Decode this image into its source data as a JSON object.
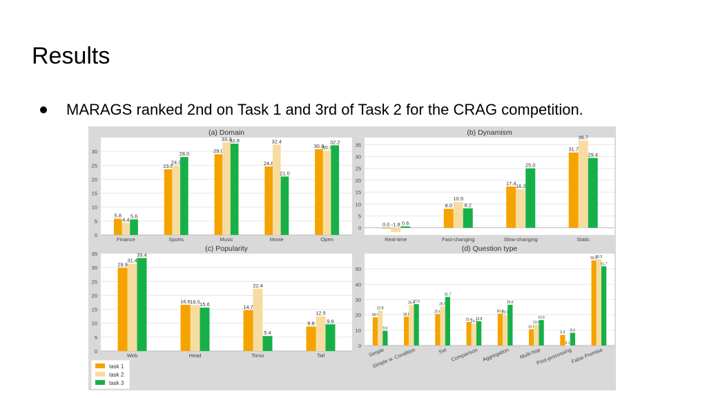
{
  "slide": {
    "title": "Results",
    "bullet": "MARAGS ranked 2nd on Task 1 and 3rd of Task 2 for the CRAG competition."
  },
  "colors": {
    "task 1": "#f5a300",
    "task 2": "#f7dca0",
    "task 3": "#17b048",
    "panel_bg": "#ffffff",
    "grid": "#e6e6e6"
  },
  "legend": {
    "placement": "bottom-left",
    "items": [
      "task 1",
      "task 2",
      "task 3"
    ]
  },
  "chart_data": [
    {
      "type": "bar",
      "title": "(a) Domain",
      "categories": [
        "Finance",
        "Sports",
        "Music",
        "Movie",
        "Open"
      ],
      "series": [
        {
          "name": "task 1",
          "values": [
            5.8,
            23.6,
            29.0,
            24.6,
            30.8
          ]
        },
        {
          "name": "task 2",
          "values": [
            4.4,
            24.9,
            33.3,
            32.4,
            30.3
          ]
        },
        {
          "name": "task 3",
          "values": [
            5.6,
            28.0,
            32.8,
            21.0,
            32.2
          ]
        }
      ],
      "ylim": [
        0,
        35
      ],
      "yticks": [
        0,
        5,
        10,
        15,
        20,
        25,
        30
      ],
      "grid": true
    },
    {
      "type": "bar",
      "title": "(b) Dynamism",
      "categories": [
        "Real-time",
        "Fast-changing",
        "Slow-changing",
        "Static"
      ],
      "series": [
        {
          "name": "task 1",
          "values": [
            0.0,
            8.0,
            17.4,
            31.7
          ]
        },
        {
          "name": "task 2",
          "values": [
            -1.8,
            10.9,
            16.2,
            36.7
          ]
        },
        {
          "name": "task 3",
          "values": [
            0.6,
            8.2,
            25.0,
            29.4
          ]
        }
      ],
      "ylim": [
        -3,
        38
      ],
      "yticks": [
        0,
        5,
        10,
        15,
        20,
        25,
        30,
        35
      ],
      "grid": true
    },
    {
      "type": "bar",
      "title": "(c) Popularity",
      "categories": [
        "Web",
        "Head",
        "Torso",
        "Tail"
      ],
      "series": [
        {
          "name": "task 1",
          "values": [
            29.9,
            16.6,
            14.7,
            8.8
          ]
        },
        {
          "name": "task 2",
          "values": [
            31.4,
            16.5,
            22.4,
            12.5
          ]
        },
        {
          "name": "task 3",
          "values": [
            33.4,
            15.6,
            5.4,
            9.6
          ]
        }
      ],
      "ylim": [
        0,
        35
      ],
      "yticks": [
        0,
        5,
        10,
        15,
        20,
        25,
        30,
        35
      ],
      "grid": true
    },
    {
      "type": "bar",
      "title": "(d) Question type",
      "categories": [
        "Simple",
        "Simple w. Condition",
        "Set",
        "Comparison",
        "Aggregation",
        "Multi-hop",
        "Post-processing",
        "False Premise"
      ],
      "series": [
        {
          "name": "task 1",
          "values": [
            18.4,
            18.8,
            20.6,
            15.4,
            20.8,
            10.6,
            6.9,
            55.6
          ]
        },
        {
          "name": "task 2",
          "values": [
            22.8,
            26.4,
            25.5,
            14.3,
            20.0,
            13.6,
            0.1,
            56.5
          ]
        },
        {
          "name": "task 3",
          "values": [
            9.6,
            27.0,
            31.7,
            15.8,
            26.6,
            16.6,
            8.3,
            51.7
          ]
        }
      ],
      "ylim": [
        0,
        60
      ],
      "yticks": [
        0,
        10,
        20,
        30,
        40,
        50
      ],
      "grid": true
    }
  ]
}
